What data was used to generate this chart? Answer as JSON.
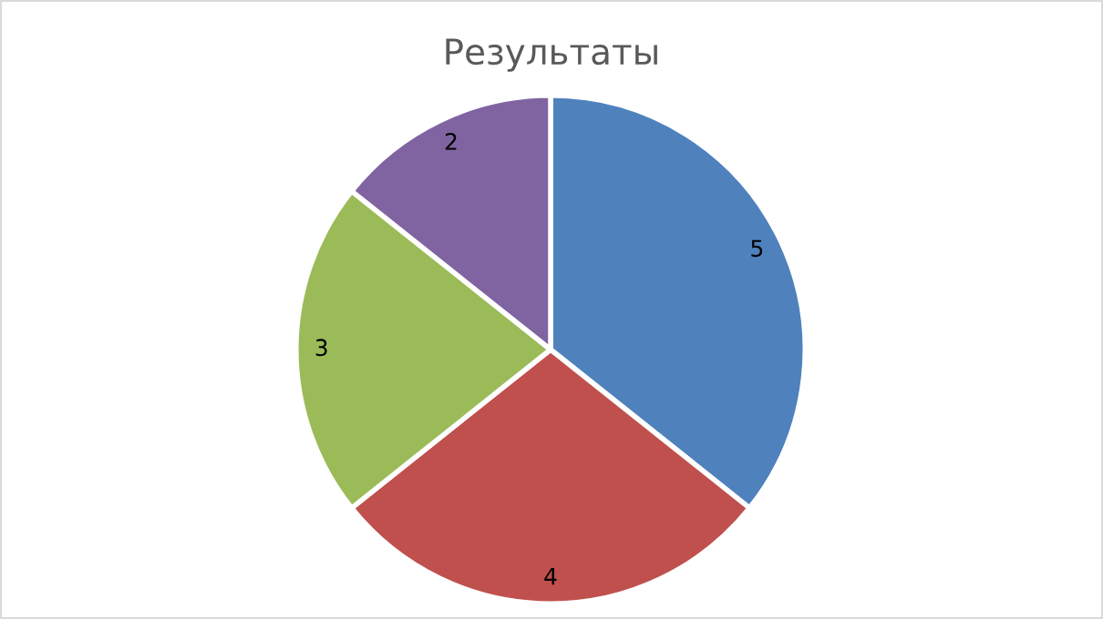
{
  "chart_data": {
    "type": "pie",
    "title": "Результаты",
    "categories": [
      null,
      null,
      null,
      null
    ],
    "values": [
      5,
      4,
      3,
      2
    ],
    "colors": [
      "#4f81bd",
      "#c0504d",
      "#9bbb59",
      "#8064a2"
    ],
    "data_labels": true
  }
}
